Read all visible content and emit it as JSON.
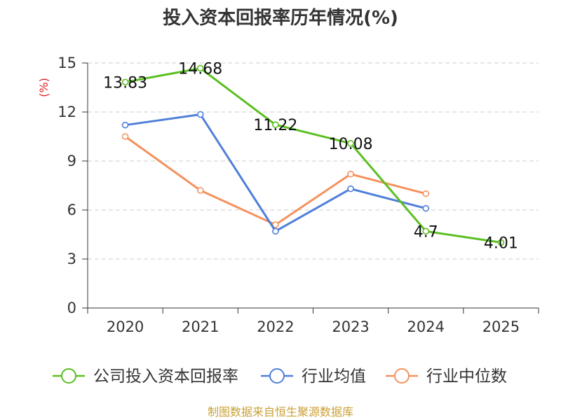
{
  "chart_data": {
    "type": "line",
    "title": "投入资本回报率历年情况(%)",
    "ylabel": "(%)",
    "xlabel": "",
    "categories": [
      "2020",
      "2021",
      "2022",
      "2023",
      "2024",
      "2025"
    ],
    "ylim": [
      0,
      15
    ],
    "yticks": [
      0,
      3,
      6,
      9,
      12,
      15
    ],
    "grid": true,
    "legend_position": "bottom",
    "series": [
      {
        "name": "公司投入资本回报率",
        "color": "#5bbf22",
        "values": [
          13.83,
          14.68,
          11.22,
          10.08,
          4.7,
          4.01
        ],
        "labels": [
          "13.83",
          "14.68",
          "11.22",
          "10.08",
          "4.7",
          "4.01"
        ]
      },
      {
        "name": "行业均值",
        "color": "#4f7fd9",
        "values": [
          11.2,
          11.85,
          4.7,
          7.3,
          6.1,
          null
        ]
      },
      {
        "name": "行业中位数",
        "color": "#f4925e",
        "values": [
          10.5,
          7.2,
          5.1,
          8.2,
          7.0,
          null
        ]
      }
    ],
    "source": "制图数据来自恒生聚源数据库"
  }
}
